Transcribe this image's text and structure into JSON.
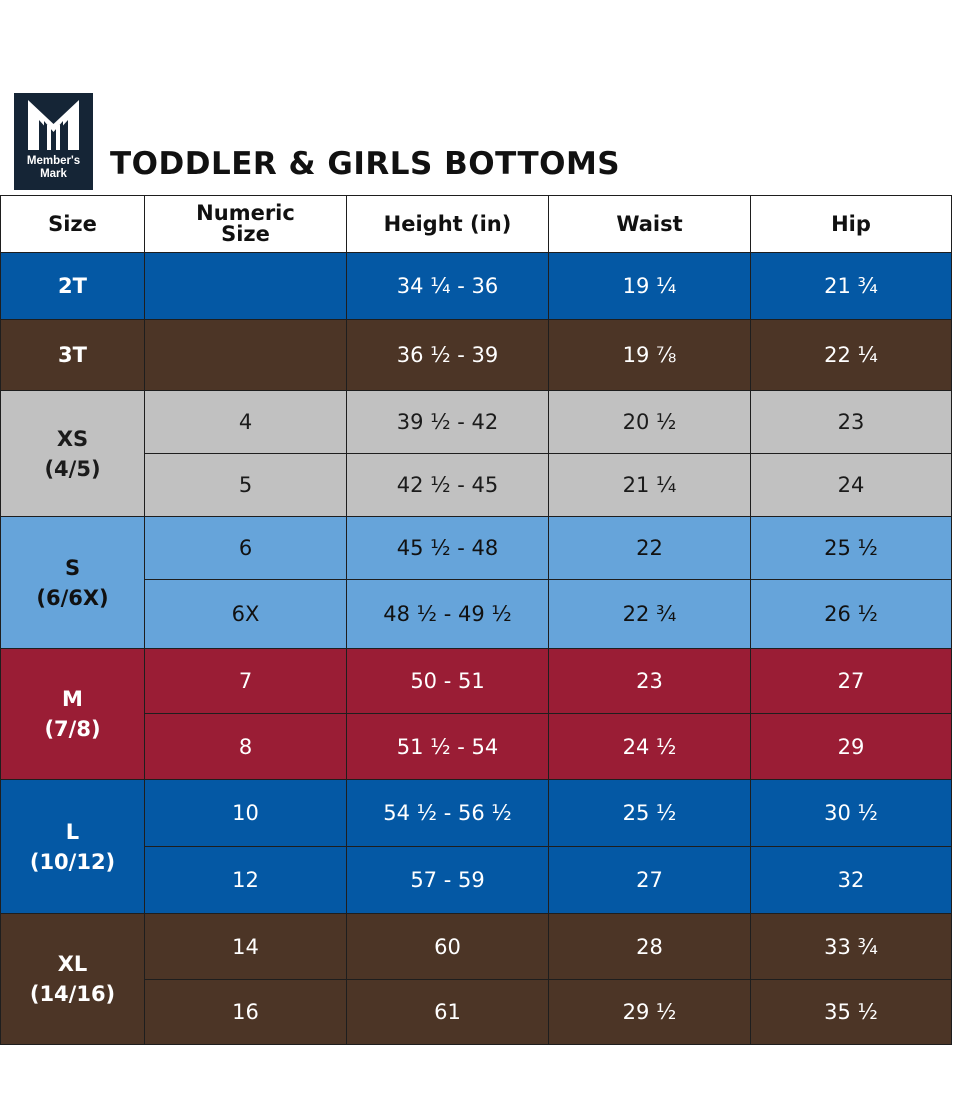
{
  "brand": {
    "logo_line1": "Member's",
    "logo_line2": "Mark"
  },
  "title": "TODDLER & GIRLS BOTTOMS",
  "columns": [
    "Size",
    "Numeric Size",
    "Height (in)",
    "Waist",
    "Hip"
  ],
  "colors": {
    "blue": "#0458a4",
    "brown": "#4c3526",
    "gray": "#c1c1c1",
    "light_blue": "#66a4da",
    "red": "#9a1d35"
  },
  "groups": [
    {
      "size": "2T",
      "sub": "",
      "color": "blue",
      "rows": [
        {
          "numeric": "",
          "height": "34 ¼ - 36",
          "waist": "19 ¼",
          "hip": "21 ¾"
        }
      ]
    },
    {
      "size": "3T",
      "sub": "",
      "color": "brown",
      "rows": [
        {
          "numeric": "",
          "height": "36 ½ - 39",
          "waist": "19 ⅞",
          "hip": "22 ¼"
        }
      ]
    },
    {
      "size": "XS",
      "sub": "(4/5)",
      "color": "gray",
      "rows": [
        {
          "numeric": "4",
          "height": "39 ½ - 42",
          "waist": "20 ½",
          "hip": "23"
        },
        {
          "numeric": "5",
          "height": "42 ½ - 45",
          "waist": "21 ¼",
          "hip": "24"
        }
      ]
    },
    {
      "size": "S",
      "sub": "(6/6X)",
      "color": "lblue",
      "rows": [
        {
          "numeric": "6",
          "height": "45 ½ - 48",
          "waist": "22",
          "hip": "25 ½"
        },
        {
          "numeric": "6X",
          "height": "48 ½ - 49 ½",
          "waist": "22 ¾",
          "hip": "26 ½"
        }
      ]
    },
    {
      "size": "M",
      "sub": "(7/8)",
      "color": "red",
      "rows": [
        {
          "numeric": "7",
          "height": "50 - 51",
          "waist": "23",
          "hip": "27"
        },
        {
          "numeric": "8",
          "height": "51 ½ - 54",
          "waist": "24 ½",
          "hip": "29"
        }
      ]
    },
    {
      "size": "L",
      "sub": "(10/12)",
      "color": "blue",
      "rows": [
        {
          "numeric": "10",
          "height": "54 ½ - 56 ½",
          "waist": "25 ½",
          "hip": "30 ½"
        },
        {
          "numeric": "12",
          "height": "57 - 59",
          "waist": "27",
          "hip": "32"
        }
      ]
    },
    {
      "size": "XL",
      "sub": "(14/16)",
      "color": "brown",
      "rows": [
        {
          "numeric": "14",
          "height": "60",
          "waist": "28",
          "hip": "33 ¾"
        },
        {
          "numeric": "16",
          "height": "61",
          "waist": "29 ½",
          "hip": "35 ½"
        }
      ]
    }
  ]
}
